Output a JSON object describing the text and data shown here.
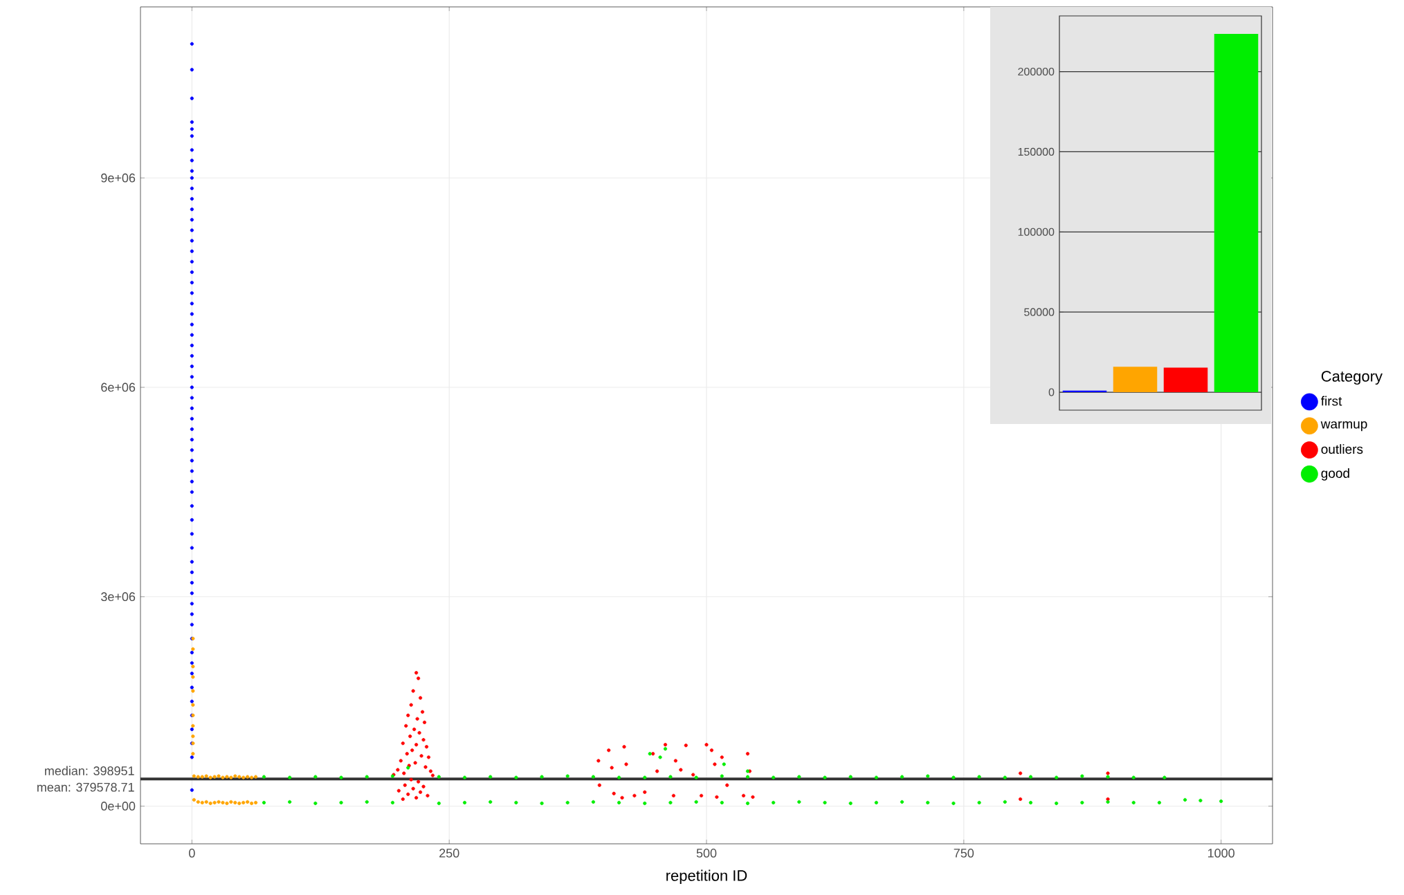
{
  "chart_data": [
    {
      "type": "scatter",
      "xlabel": "repetition ID",
      "legend_title": "Category",
      "legend": "right",
      "grid": true,
      "marker": "circle",
      "xlim": [
        -50,
        1050
      ],
      "ylim": [
        -540000,
        11450000
      ],
      "xticks": [
        0,
        250,
        500,
        750,
        1000
      ],
      "yticks": [
        {
          "value": 0,
          "label": "0e+00"
        },
        {
          "value": 3000000,
          "label": "3e+06"
        },
        {
          "value": 6000000,
          "label": "6e+06"
        },
        {
          "value": 9000000,
          "label": "9e+06"
        }
      ],
      "ref_lines": [
        {
          "axis": "y",
          "value": 398951,
          "label": "median: 398951"
        },
        {
          "axis": "y",
          "value": 379578.71,
          "label": "mean: 379578.71"
        }
      ],
      "series": [
        {
          "name": "first",
          "color": "#0000ff",
          "x": [
            0,
            0,
            0,
            0,
            0,
            0,
            0,
            0,
            0,
            0,
            0,
            0,
            0,
            0,
            0,
            0,
            0,
            0,
            0,
            0,
            0,
            0,
            0,
            0,
            0,
            0,
            0,
            0,
            0,
            0,
            0,
            0,
            0,
            0,
            0,
            0,
            0,
            0,
            0,
            0,
            0,
            0,
            0,
            0,
            0,
            0,
            0,
            0,
            0,
            0,
            0,
            0,
            0,
            0,
            0,
            0,
            0,
            0,
            0,
            0,
            0,
            0
          ],
          "values": [
            10920000,
            10550000,
            10140000,
            9800000,
            9700000,
            9600000,
            9400000,
            9250000,
            9100000,
            9000000,
            8850000,
            8700000,
            8550000,
            8400000,
            8250000,
            8100000,
            7950000,
            7800000,
            7650000,
            7500000,
            7350000,
            7200000,
            7050000,
            6900000,
            6750000,
            6600000,
            6450000,
            6300000,
            6150000,
            6000000,
            5850000,
            5700000,
            5550000,
            5400000,
            5250000,
            5100000,
            4950000,
            4800000,
            4650000,
            4500000,
            4300000,
            4100000,
            3900000,
            3700000,
            3500000,
            3350000,
            3200000,
            3050000,
            2900000,
            2750000,
            2600000,
            2400000,
            2200000,
            2050000,
            1900000,
            1700000,
            1500000,
            1300000,
            1100000,
            900000,
            700000,
            230000
          ]
        },
        {
          "name": "warmup",
          "color": "#ffa500",
          "x": [
            1,
            1,
            1,
            1,
            1,
            1,
            1,
            1,
            1,
            1,
            1,
            2,
            6,
            10,
            14,
            18,
            22,
            26,
            30,
            34,
            38,
            42,
            46,
            50,
            54,
            58,
            62,
            2,
            6,
            10,
            14,
            18,
            22,
            26,
            30,
            34,
            38,
            42,
            46,
            50,
            54,
            58,
            62
          ],
          "values": [
            2400000,
            2250000,
            2000000,
            1850000,
            1650000,
            1450000,
            1300000,
            1150000,
            1000000,
            900000,
            750000,
            430000,
            420000,
            420000,
            430000,
            410000,
            420000,
            430000,
            410000,
            420000,
            410000,
            430000,
            420000,
            410000,
            420000,
            410000,
            420000,
            90000,
            60000,
            50000,
            60000,
            40000,
            50000,
            60000,
            50000,
            40000,
            60000,
            50000,
            40000,
            50000,
            60000,
            40000,
            50000
          ]
        },
        {
          "name": "outliers",
          "color": "#ff0000",
          "x": [
            218,
            220,
            215,
            222,
            213,
            224,
            210,
            219,
            226,
            208,
            216,
            221,
            212,
            225,
            205,
            218,
            228,
            214,
            209,
            223,
            230,
            203,
            217,
            211,
            227,
            200,
            232,
            206,
            196,
            234,
            213,
            220,
            207,
            225,
            215,
            201,
            222,
            210,
            229,
            218,
            205,
            395,
            396,
            405,
            408,
            410,
            420,
            422,
            418,
            440,
            448,
            452,
            460,
            470,
            468,
            480,
            487,
            500,
            505,
            508,
            510,
            515,
            520,
            540,
            542,
            536,
            545,
            430,
            475,
            495,
            805,
            805,
            890,
            890
          ],
          "values": [
            1910000,
            1830000,
            1650000,
            1550000,
            1450000,
            1350000,
            1300000,
            1250000,
            1200000,
            1150000,
            1100000,
            1050000,
            1000000,
            950000,
            900000,
            880000,
            850000,
            800000,
            750000,
            720000,
            700000,
            650000,
            620000,
            580000,
            560000,
            520000,
            500000,
            470000,
            450000,
            440000,
            380000,
            350000,
            300000,
            280000,
            250000,
            220000,
            200000,
            170000,
            150000,
            120000,
            100000,
            650000,
            300000,
            800000,
            550000,
            180000,
            850000,
            600000,
            120000,
            200000,
            750000,
            500000,
            880000,
            650000,
            150000,
            870000,
            450000,
            880000,
            800000,
            600000,
            130000,
            700000,
            300000,
            750000,
            500000,
            150000,
            130000,
            150000,
            520000,
            150000,
            470000,
            100000,
            470000,
            100000
          ]
        },
        {
          "name": "good",
          "color": "#00ee00",
          "x": [
            70,
            95,
            120,
            145,
            170,
            195,
            240,
            265,
            290,
            315,
            340,
            365,
            390,
            415,
            440,
            465,
            490,
            515,
            540,
            565,
            590,
            615,
            640,
            665,
            690,
            715,
            740,
            765,
            790,
            815,
            840,
            865,
            890,
            915,
            945,
            70,
            95,
            120,
            145,
            170,
            195,
            240,
            265,
            290,
            315,
            340,
            365,
            390,
            415,
            440,
            465,
            490,
            515,
            540,
            565,
            590,
            615,
            640,
            665,
            690,
            715,
            740,
            765,
            790,
            815,
            840,
            865,
            890,
            915,
            940,
            965,
            980,
            1000,
            210,
            445,
            455,
            460,
            517,
            540
          ],
          "values": [
            420000,
            410000,
            420000,
            410000,
            420000,
            430000,
            420000,
            410000,
            420000,
            410000,
            420000,
            430000,
            420000,
            410000,
            410000,
            420000,
            410000,
            430000,
            420000,
            410000,
            420000,
            410000,
            420000,
            410000,
            420000,
            430000,
            410000,
            420000,
            410000,
            420000,
            410000,
            430000,
            420000,
            410000,
            410000,
            50000,
            60000,
            40000,
            50000,
            60000,
            50000,
            40000,
            50000,
            60000,
            50000,
            40000,
            50000,
            60000,
            50000,
            40000,
            50000,
            60000,
            50000,
            40000,
            50000,
            60000,
            50000,
            40000,
            50000,
            60000,
            50000,
            40000,
            50000,
            60000,
            50000,
            40000,
            50000,
            60000,
            50000,
            50000,
            90000,
            80000,
            70000,
            550000,
            750000,
            700000,
            820000,
            600000,
            500000
          ]
        }
      ]
    },
    {
      "type": "bar",
      "categories": [
        null,
        null,
        null,
        null
      ],
      "values": [
        1000,
        15900,
        15400,
        223600
      ],
      "colors": [
        "#0000ff",
        "#ffa500",
        "#ff0000",
        "#00ee00"
      ],
      "ylim": [
        -11180,
        234780
      ],
      "yticks": [
        0,
        50000,
        100000,
        150000,
        200000
      ],
      "grid": "y",
      "tick_labels": "y"
    }
  ]
}
